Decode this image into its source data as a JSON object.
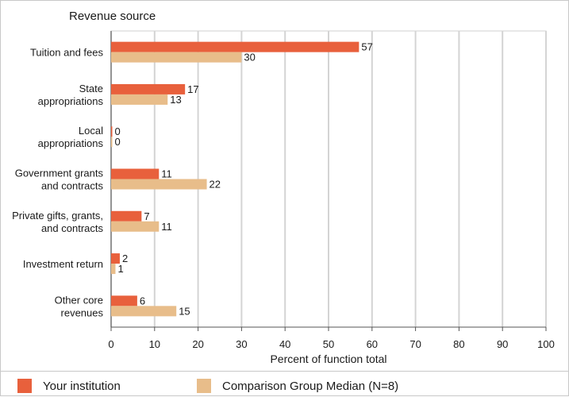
{
  "chart_data": {
    "type": "bar",
    "orientation": "horizontal",
    "title": "Revenue source",
    "xlabel": "Percent of function total",
    "ylabel": "",
    "xlim": [
      0,
      100
    ],
    "xticks": [
      0,
      10,
      20,
      30,
      40,
      50,
      60,
      70,
      80,
      90,
      100
    ],
    "grid": true,
    "legend_position": "bottom",
    "categories": [
      [
        "Tuition and fees"
      ],
      [
        "State",
        "appropriations"
      ],
      [
        "Local",
        "appropriations"
      ],
      [
        "Government grants",
        "and contracts"
      ],
      [
        "Private gifts, grants,",
        "and contracts"
      ],
      [
        "Investment return"
      ],
      [
        "Other core",
        "revenues"
      ]
    ],
    "series": [
      {
        "name": "Your institution",
        "color": "#e8603c",
        "values": [
          57,
          17,
          0,
          11,
          7,
          2,
          6
        ]
      },
      {
        "name": "Comparison Group Median (N=8)",
        "color": "#e8bd8a",
        "values": [
          30,
          13,
          0,
          22,
          11,
          1,
          15
        ]
      }
    ]
  }
}
